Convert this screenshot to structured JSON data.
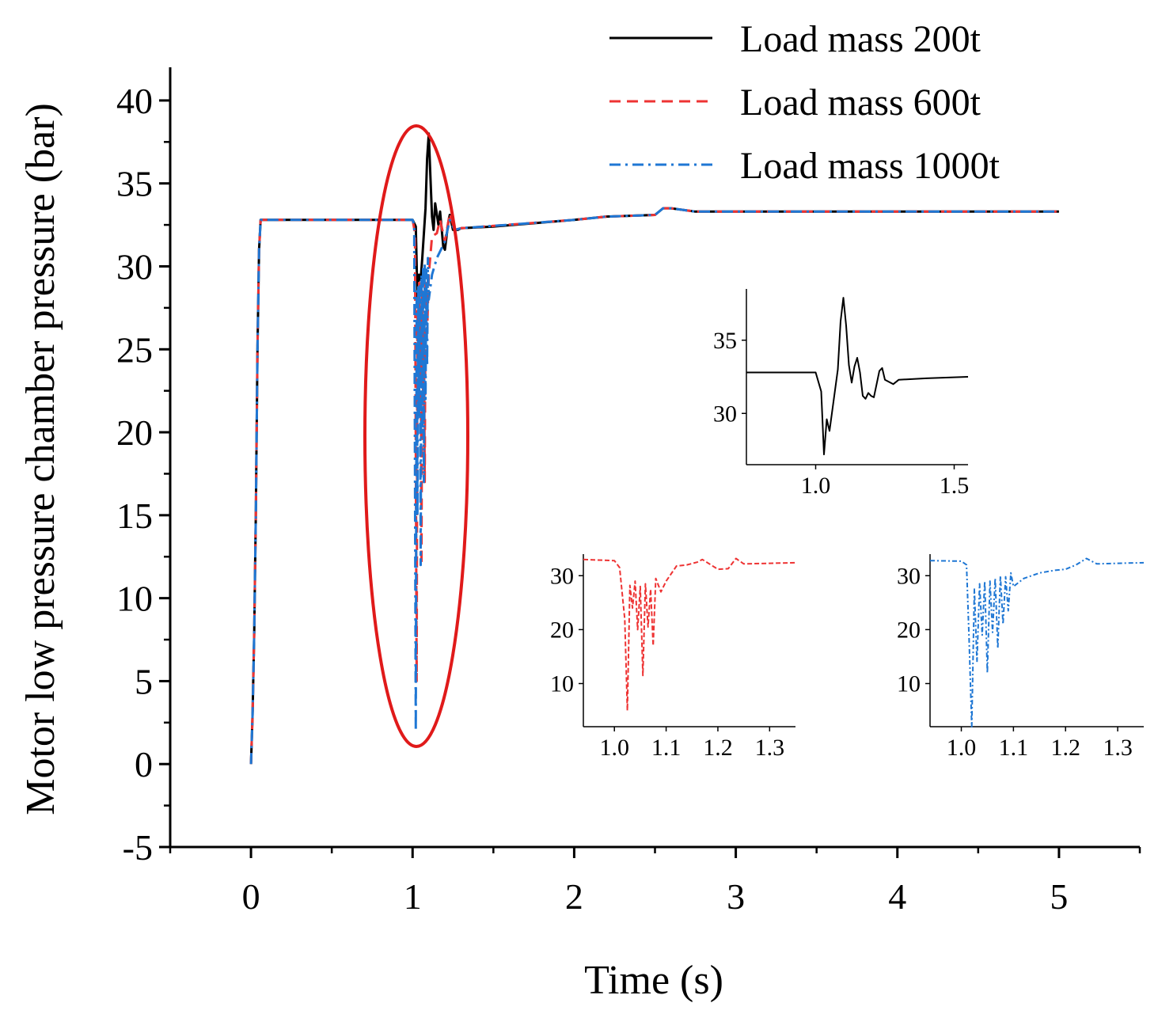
{
  "chart_data": {
    "type": "line",
    "xlabel": "Time (s)",
    "ylabel": "Motor low pressure chamber pressure (bar)",
    "xlim": [
      -0.5,
      5.5
    ],
    "ylim": [
      -5,
      42
    ],
    "xticks": [
      0,
      1,
      2,
      3,
      4,
      5
    ],
    "xtick_labels": [
      "0",
      "1",
      "2",
      "3",
      "4",
      "5"
    ],
    "yticks": [
      -5,
      0,
      5,
      10,
      15,
      20,
      25,
      30,
      35,
      40
    ],
    "ytick_labels": [
      "-5",
      "0",
      "5",
      "10",
      "15",
      "20",
      "25",
      "30",
      "35",
      "40"
    ],
    "legend_position": "top-right",
    "annotation": "red ellipse highlighting transient around t = 1 s",
    "series": [
      {
        "name": "Load mass 200t",
        "color": "#000000",
        "style": "solid",
        "x": [
          0,
          0.01,
          0.02,
          0.03,
          0.04,
          0.05,
          0.06,
          0.07,
          1.0,
          1.02,
          1.03,
          1.04,
          1.05,
          1.06,
          1.08,
          1.09,
          1.1,
          1.11,
          1.12,
          1.13,
          1.14,
          1.16,
          1.17,
          1.19,
          1.2,
          1.22,
          1.23,
          1.25,
          1.28,
          1.3,
          1.5,
          2.0,
          2.2,
          2.5,
          2.55,
          2.6,
          2.75,
          5.0
        ],
        "y": [
          0,
          3,
          8,
          15,
          25,
          31,
          32.8,
          32.8,
          32.8,
          32.4,
          28.0,
          29.5,
          29.2,
          30.5,
          33.5,
          36.5,
          38.0,
          35.5,
          33.0,
          32.2,
          33.8,
          32.5,
          33.3,
          31.2,
          31.0,
          32.6,
          33.1,
          32.2,
          32.2,
          32.3,
          32.4,
          32.8,
          33.0,
          33.1,
          33.5,
          33.5,
          33.3,
          33.3
        ]
      },
      {
        "name": "Load mass 600t",
        "color": "#ee3333",
        "style": "dashed",
        "x": [
          0,
          0.01,
          0.02,
          0.03,
          0.04,
          0.05,
          0.06,
          0.07,
          1.0,
          1.015,
          1.025,
          1.03,
          1.035,
          1.04,
          1.045,
          1.05,
          1.055,
          1.06,
          1.065,
          1.07,
          1.075,
          1.08,
          1.09,
          1.1,
          1.12,
          1.15,
          1.17,
          1.2,
          1.23,
          1.26,
          1.3,
          2.0,
          2.2,
          2.5,
          2.55,
          2.6,
          2.75,
          5.0
        ],
        "y": [
          0,
          3,
          8,
          15,
          25,
          31,
          32.8,
          32.8,
          32.8,
          32.0,
          5.0,
          28.0,
          25.0,
          29.0,
          23.0,
          27.5,
          12.0,
          28.5,
          22.0,
          27.0,
          17.0,
          29.0,
          26.0,
          29.5,
          31.8,
          32.0,
          32.8,
          31.5,
          33.2,
          32.2,
          32.3,
          32.8,
          33.0,
          33.1,
          33.5,
          33.5,
          33.3,
          33.3
        ]
      },
      {
        "name": "Load mass 1000t",
        "color": "#1f77d4",
        "style": "dashdot",
        "x": [
          0,
          0.01,
          0.02,
          0.03,
          0.04,
          0.05,
          0.06,
          0.07,
          1.0,
          1.01,
          1.02,
          1.025,
          1.03,
          1.035,
          1.04,
          1.045,
          1.05,
          1.055,
          1.06,
          1.065,
          1.07,
          1.075,
          1.08,
          1.085,
          1.09,
          1.095,
          1.1,
          1.12,
          1.15,
          1.2,
          1.23,
          1.26,
          1.3,
          2.0,
          2.2,
          2.5,
          2.55,
          2.6,
          2.75,
          5.0
        ],
        "y": [
          0,
          3,
          8,
          15,
          25,
          31,
          32.8,
          32.8,
          32.8,
          32.5,
          2.0,
          28.5,
          15.0,
          28.8,
          21.0,
          29.0,
          12.0,
          29.5,
          20.0,
          30.0,
          17.0,
          30.2,
          22.0,
          29.8,
          24.0,
          30.5,
          28.0,
          29.5,
          30.5,
          31.5,
          32.8,
          32.2,
          32.3,
          32.8,
          33.0,
          33.1,
          33.5,
          33.5,
          33.3,
          33.3
        ]
      }
    ],
    "insets": [
      {
        "name": "inset-200t",
        "series_index": 0,
        "xlim": [
          0.75,
          1.55
        ],
        "ylim": [
          26.5,
          38.5
        ],
        "xticks": [
          1.0,
          1.5
        ],
        "xtick_labels": [
          "1.0",
          "1.5"
        ],
        "yticks": [
          30,
          35
        ],
        "ytick_labels": [
          "30",
          "35"
        ],
        "x": [
          0.75,
          0.99,
          1.0,
          1.02,
          1.03,
          1.04,
          1.05,
          1.06,
          1.08,
          1.09,
          1.1,
          1.11,
          1.12,
          1.13,
          1.14,
          1.15,
          1.16,
          1.17,
          1.18,
          1.19,
          1.2,
          1.21,
          1.22,
          1.23,
          1.24,
          1.25,
          1.28,
          1.3,
          1.4,
          1.55
        ],
        "y": [
          32.8,
          32.8,
          32.8,
          31.5,
          27.2,
          29.6,
          28.8,
          30.2,
          33.0,
          36.3,
          37.9,
          36.0,
          33.3,
          32.1,
          33.2,
          33.8,
          32.8,
          31.2,
          31.0,
          31.4,
          31.2,
          31.1,
          32.0,
          32.9,
          33.1,
          32.3,
          32.0,
          32.3,
          32.4,
          32.5
        ]
      },
      {
        "name": "inset-600t",
        "series_index": 1,
        "xlim": [
          0.94,
          1.35
        ],
        "ylim": [
          2.0,
          34.0
        ],
        "xticks": [
          1.0,
          1.1,
          1.2,
          1.3
        ],
        "xtick_labels": [
          "1.0",
          "1.1",
          "1.2",
          "1.3"
        ],
        "yticks": [
          10,
          20,
          30
        ],
        "ytick_labels": [
          "10",
          "20",
          "30"
        ],
        "x": [
          0.94,
          1.0,
          1.01,
          1.02,
          1.025,
          1.03,
          1.035,
          1.04,
          1.045,
          1.05,
          1.055,
          1.06,
          1.065,
          1.07,
          1.075,
          1.08,
          1.09,
          1.1,
          1.12,
          1.14,
          1.16,
          1.17,
          1.2,
          1.22,
          1.235,
          1.25,
          1.3,
          1.35
        ],
        "y": [
          33.0,
          32.8,
          31.5,
          22.0,
          5.0,
          28.2,
          24.0,
          29.0,
          20.0,
          28.0,
          11.5,
          28.5,
          20.5,
          27.5,
          17.0,
          29.5,
          27.0,
          29.0,
          31.8,
          32.0,
          32.5,
          33.0,
          31.2,
          31.3,
          33.2,
          32.2,
          32.3,
          32.4
        ]
      },
      {
        "name": "inset-1000t",
        "series_index": 2,
        "xlim": [
          0.94,
          1.35
        ],
        "ylim": [
          2.0,
          34.0
        ],
        "xticks": [
          1.0,
          1.1,
          1.2,
          1.3
        ],
        "xtick_labels": [
          "1.0",
          "1.1",
          "1.2",
          "1.3"
        ],
        "yticks": [
          10,
          20,
          30
        ],
        "ytick_labels": [
          "10",
          "20",
          "30"
        ],
        "x": [
          0.94,
          1.0,
          1.01,
          1.015,
          1.02,
          1.025,
          1.03,
          1.035,
          1.04,
          1.045,
          1.05,
          1.055,
          1.06,
          1.065,
          1.07,
          1.075,
          1.08,
          1.085,
          1.09,
          1.095,
          1.1,
          1.12,
          1.15,
          1.18,
          1.2,
          1.22,
          1.24,
          1.26,
          1.3,
          1.35
        ],
        "y": [
          32.8,
          32.7,
          32.0,
          18.0,
          2.0,
          27.5,
          14.0,
          28.5,
          19.0,
          29.0,
          12.0,
          29.0,
          19.5,
          29.5,
          16.5,
          30.0,
          21.0,
          29.8,
          23.5,
          30.5,
          28.0,
          29.5,
          30.5,
          31.0,
          31.2,
          32.0,
          33.2,
          32.2,
          32.3,
          32.4
        ]
      }
    ]
  }
}
